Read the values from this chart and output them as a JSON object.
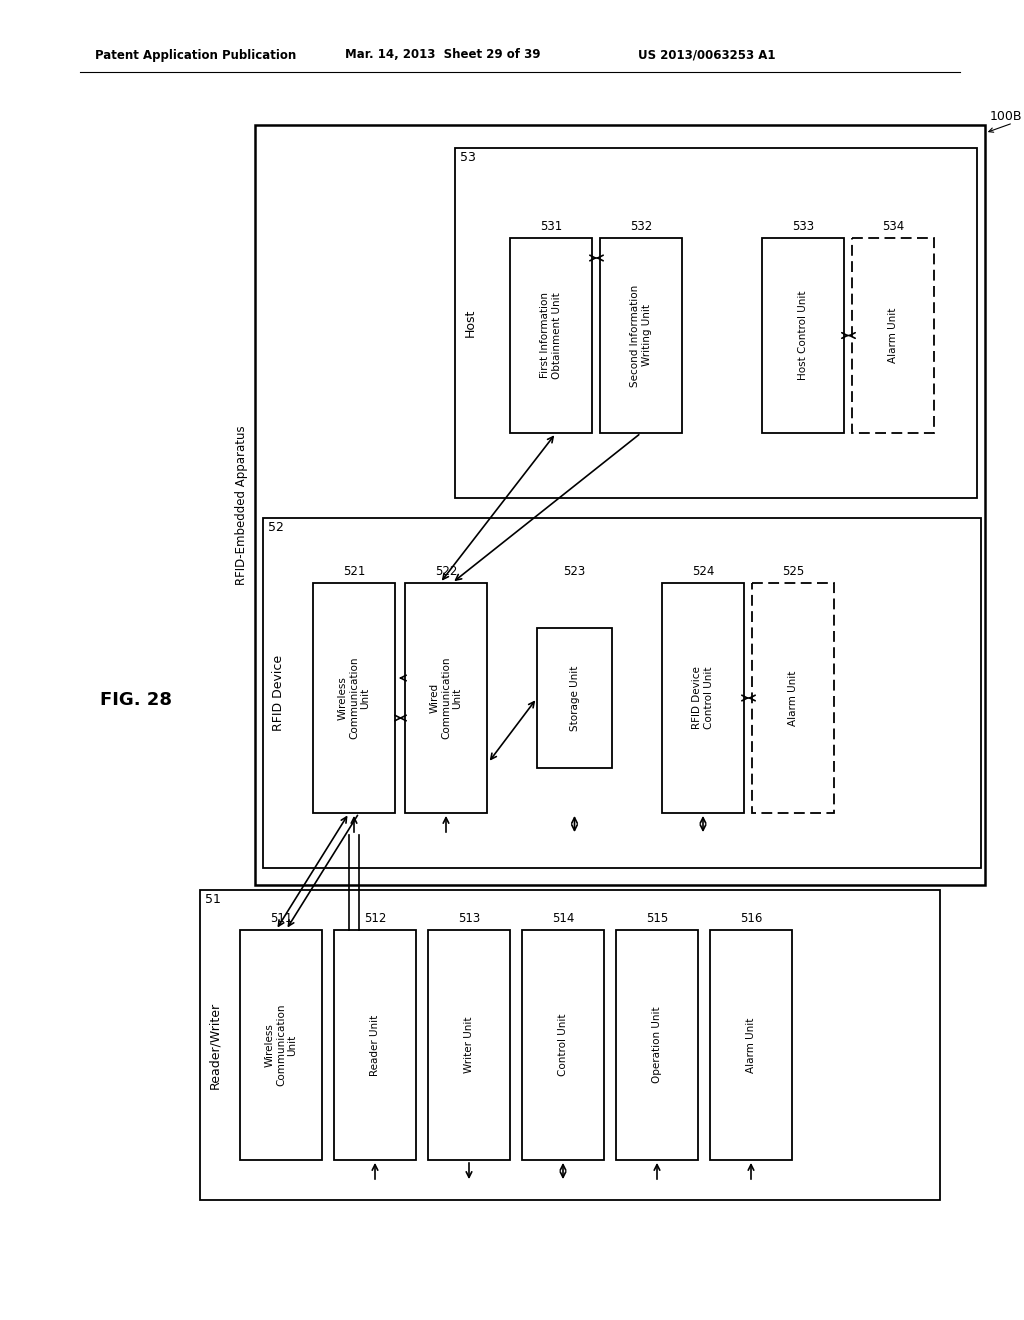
{
  "bg_color": "#ffffff",
  "header_left": "Patent Application Publication",
  "header_mid": "Mar. 14, 2013  Sheet 29 of 39",
  "header_right": "US 2013/0063253 A1",
  "fig_label": "FIG. 28",
  "outer_label": "100B",
  "outer_side_label": "RFID-Embedded Apparatus",
  "host_num": "53",
  "host_title": "Host",
  "rfid_num": "52",
  "rfid_title": "RFID Device",
  "rw_num": "51",
  "rw_title": "Reader/Writer",
  "host_boxes": [
    {
      "num": "531",
      "text": "First Information\nObtainment Unit",
      "dashed": false
    },
    {
      "num": "532",
      "text": "Second Information\nWriting Unit",
      "dashed": false
    },
    {
      "num": "533",
      "text": "Host Control Unit",
      "dashed": false
    },
    {
      "num": "534",
      "text": "Alarm Unit",
      "dashed": true
    }
  ],
  "rfid_boxes": [
    {
      "num": "521",
      "text": "Wireless\nCommunication\nUnit",
      "dashed": false
    },
    {
      "num": "522",
      "text": "Wired\nCommunication\nUnit",
      "dashed": false
    },
    {
      "num": "523",
      "text": "Storage Unit",
      "dashed": false
    },
    {
      "num": "524",
      "text": "RFID Device\nControl Unit",
      "dashed": false
    },
    {
      "num": "525",
      "text": "Alarm Unit",
      "dashed": true
    }
  ],
  "rw_boxes": [
    {
      "num": "511",
      "text": "Wireless\nCommunication\nUnit",
      "dashed": false
    },
    {
      "num": "512",
      "text": "Reader Unit",
      "dashed": false
    },
    {
      "num": "513",
      "text": "Writer Unit",
      "dashed": false
    },
    {
      "num": "514",
      "text": "Control Unit",
      "dashed": false
    },
    {
      "num": "515",
      "text": "Operation Unit",
      "dashed": false
    },
    {
      "num": "516",
      "text": "Alarm Unit",
      "dashed": false
    }
  ]
}
